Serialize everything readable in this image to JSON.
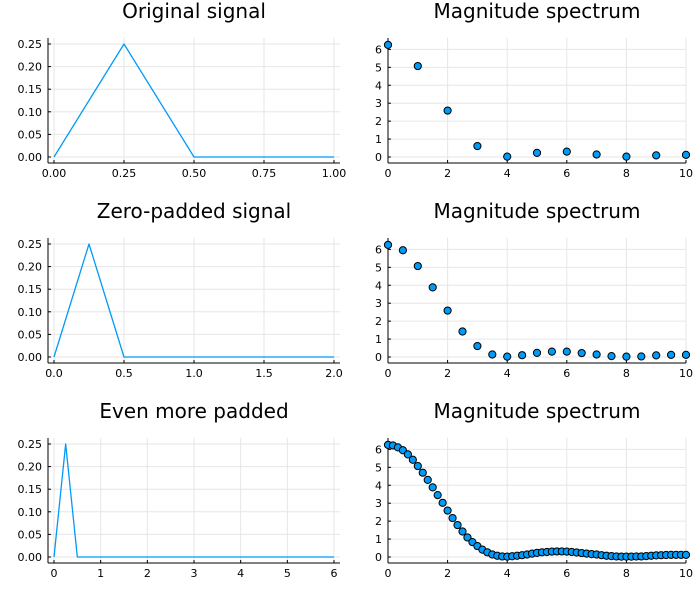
{
  "colors": {
    "series": "#009af9",
    "marker_stroke": "#000000",
    "grid": "#e6e6e6",
    "axis": "#000000"
  },
  "chart_data": [
    {
      "type": "line",
      "title": "Original signal",
      "xlabel": "",
      "ylabel": "",
      "xlim": [
        0,
        1
      ],
      "ylim": [
        0,
        0.25
      ],
      "xticks": [
        0,
        0.25,
        0.5,
        0.75,
        1.0
      ],
      "xtick_labels": [
        "0.00",
        "0.25",
        "0.50",
        "0.75",
        "1.00"
      ],
      "yticks": [
        0,
        0.05,
        0.1,
        0.15,
        0.2,
        0.25
      ],
      "ytick_labels": [
        "0.00",
        "0.05",
        "0.10",
        "0.15",
        "0.20",
        "0.25"
      ],
      "grid": true,
      "series": [
        {
          "x": [
            0,
            0.25,
            0.5,
            1.0
          ],
          "y": [
            0,
            0.25,
            0,
            0
          ]
        }
      ]
    },
    {
      "type": "scatter",
      "title": "Magnitude spectrum",
      "xlabel": "",
      "ylabel": "",
      "xlim": [
        0,
        10
      ],
      "ylim": [
        0,
        6.3
      ],
      "xticks": [
        0,
        2,
        4,
        6,
        8,
        10
      ],
      "xtick_labels": [
        "0",
        "2",
        "4",
        "6",
        "8",
        "10"
      ],
      "yticks": [
        0,
        1,
        2,
        3,
        4,
        5,
        6
      ],
      "ytick_labels": [
        "0",
        "1",
        "2",
        "3",
        "4",
        "5",
        "6"
      ],
      "grid": true,
      "series": [
        {
          "x": [
            0,
            1,
            2,
            3,
            4,
            5,
            6,
            7,
            8,
            9,
            10
          ],
          "y": [
            6.25,
            5.07,
            2.59,
            0.61,
            0.02,
            0.23,
            0.3,
            0.14,
            0.02,
            0.09,
            0.12
          ]
        }
      ]
    },
    {
      "type": "line",
      "title": "Zero-padded signal",
      "xlabel": "",
      "ylabel": "",
      "xlim": [
        0,
        2
      ],
      "ylim": [
        0,
        0.25
      ],
      "xticks": [
        0,
        0.5,
        1.0,
        1.5,
        2.0
      ],
      "xtick_labels": [
        "0.0",
        "0.5",
        "1.0",
        "1.5",
        "2.0"
      ],
      "yticks": [
        0,
        0.05,
        0.1,
        0.15,
        0.2,
        0.25
      ],
      "ytick_labels": [
        "0.00",
        "0.05",
        "0.10",
        "0.15",
        "0.20",
        "0.25"
      ],
      "grid": true,
      "series": [
        {
          "x": [
            0,
            0.25,
            0.5,
            2.0
          ],
          "y": [
            0,
            0.25,
            0,
            0
          ]
        }
      ]
    },
    {
      "type": "scatter",
      "title": "Magnitude spectrum",
      "xlabel": "",
      "ylabel": "",
      "xlim": [
        0,
        10
      ],
      "ylim": [
        0,
        6.3
      ],
      "xticks": [
        0,
        2,
        4,
        6,
        8,
        10
      ],
      "xtick_labels": [
        "0",
        "2",
        "4",
        "6",
        "8",
        "10"
      ],
      "yticks": [
        0,
        1,
        2,
        3,
        4,
        5,
        6
      ],
      "ytick_labels": [
        "0",
        "1",
        "2",
        "3",
        "4",
        "5",
        "6"
      ],
      "grid": true,
      "series": [
        {
          "x": [
            0,
            0.5,
            1,
            1.5,
            2,
            2.5,
            3,
            3.5,
            4,
            4.5,
            5,
            5.5,
            6,
            6.5,
            7,
            7.5,
            8,
            8.5,
            9,
            9.5,
            10
          ],
          "y": [
            6.25,
            5.95,
            5.07,
            3.88,
            2.59,
            1.42,
            0.61,
            0.14,
            0.02,
            0.1,
            0.23,
            0.3,
            0.3,
            0.22,
            0.14,
            0.05,
            0.02,
            0.03,
            0.09,
            0.12,
            0.12
          ]
        }
      ]
    },
    {
      "type": "line",
      "title": "Even more padded",
      "xlabel": "",
      "ylabel": "",
      "xlim": [
        0,
        6
      ],
      "ylim": [
        0,
        0.25
      ],
      "xticks": [
        0,
        1,
        2,
        3,
        4,
        5,
        6
      ],
      "xtick_labels": [
        "0",
        "1",
        "2",
        "3",
        "4",
        "5",
        "6"
      ],
      "yticks": [
        0,
        0.05,
        0.1,
        0.15,
        0.2,
        0.25
      ],
      "ytick_labels": [
        "0.00",
        "0.05",
        "0.10",
        "0.15",
        "0.20",
        "0.25"
      ],
      "grid": true,
      "series": [
        {
          "x": [
            0,
            0.25,
            0.5,
            6.0
          ],
          "y": [
            0,
            0.25,
            0,
            0
          ]
        }
      ]
    },
    {
      "type": "scatter",
      "title": "Magnitude spectrum",
      "xlabel": "",
      "ylabel": "",
      "xlim": [
        0,
        10
      ],
      "ylim": [
        0,
        6.3
      ],
      "xticks": [
        0,
        2,
        4,
        6,
        8,
        10
      ],
      "xtick_labels": [
        "0",
        "2",
        "4",
        "6",
        "8",
        "10"
      ],
      "yticks": [
        0,
        1,
        2,
        3,
        4,
        5,
        6
      ],
      "ytick_labels": [
        "0",
        "1",
        "2",
        "3",
        "4",
        "5",
        "6"
      ],
      "grid": true,
      "series": [
        {
          "x": [
            0,
            0.1667,
            0.3333,
            0.5,
            0.6667,
            0.8333,
            1,
            1.1667,
            1.3333,
            1.5,
            1.6667,
            1.8333,
            2,
            2.1667,
            2.3333,
            2.5,
            2.6667,
            2.8333,
            3,
            3.1667,
            3.3333,
            3.5,
            3.6667,
            3.8333,
            4,
            4.1667,
            4.3333,
            4.5,
            4.6667,
            4.8333,
            5,
            5.1667,
            5.3333,
            5.5,
            5.6667,
            5.8333,
            6,
            6.1667,
            6.3333,
            6.5,
            6.6667,
            6.8333,
            7,
            7.1667,
            7.3333,
            7.5,
            7.6667,
            7.8333,
            8,
            8.1667,
            8.3333,
            8.5,
            8.6667,
            8.8333,
            9,
            9.1667,
            9.3333,
            9.5,
            9.6667,
            9.8333,
            10
          ],
          "y": [
            6.25,
            6.22,
            6.11,
            5.95,
            5.72,
            5.42,
            5.07,
            4.7,
            4.3,
            3.88,
            3.45,
            3.02,
            2.59,
            2.17,
            1.78,
            1.42,
            1.09,
            0.83,
            0.61,
            0.41,
            0.26,
            0.14,
            0.07,
            0.03,
            0.02,
            0.04,
            0.07,
            0.1,
            0.14,
            0.19,
            0.23,
            0.26,
            0.28,
            0.3,
            0.31,
            0.31,
            0.3,
            0.28,
            0.25,
            0.22,
            0.19,
            0.16,
            0.14,
            0.1,
            0.07,
            0.05,
            0.03,
            0.02,
            0.02,
            0.02,
            0.03,
            0.03,
            0.05,
            0.07,
            0.09,
            0.1,
            0.11,
            0.12,
            0.12,
            0.12,
            0.12
          ]
        }
      ]
    }
  ]
}
